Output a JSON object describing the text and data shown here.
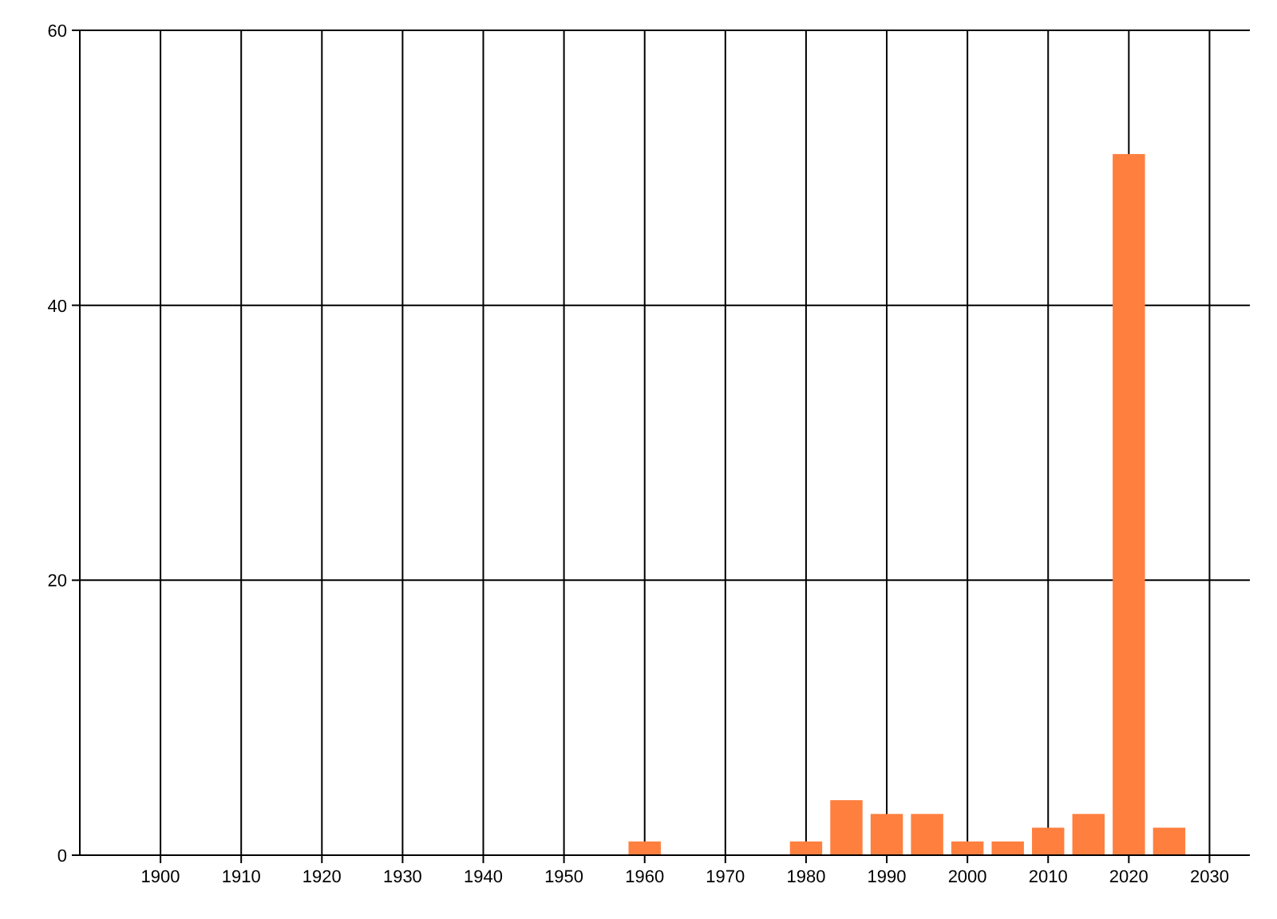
{
  "chart_data": {
    "type": "bar",
    "x": [
      1960,
      1980,
      1985,
      1990,
      1995,
      2000,
      2005,
      2010,
      2015,
      2020,
      2025
    ],
    "values": [
      1,
      1,
      4,
      3,
      3,
      1,
      1,
      2,
      3,
      51,
      2
    ],
    "color": "#ff7f3f",
    "xlim": [
      1890,
      2035
    ],
    "xticks": [
      1900,
      1910,
      1920,
      1930,
      1940,
      1950,
      1960,
      1970,
      1980,
      1990,
      2000,
      2010,
      2020,
      2030
    ],
    "ylim": [
      0,
      60
    ],
    "yticks": [
      0,
      20,
      40,
      60
    ],
    "grid": true
  }
}
